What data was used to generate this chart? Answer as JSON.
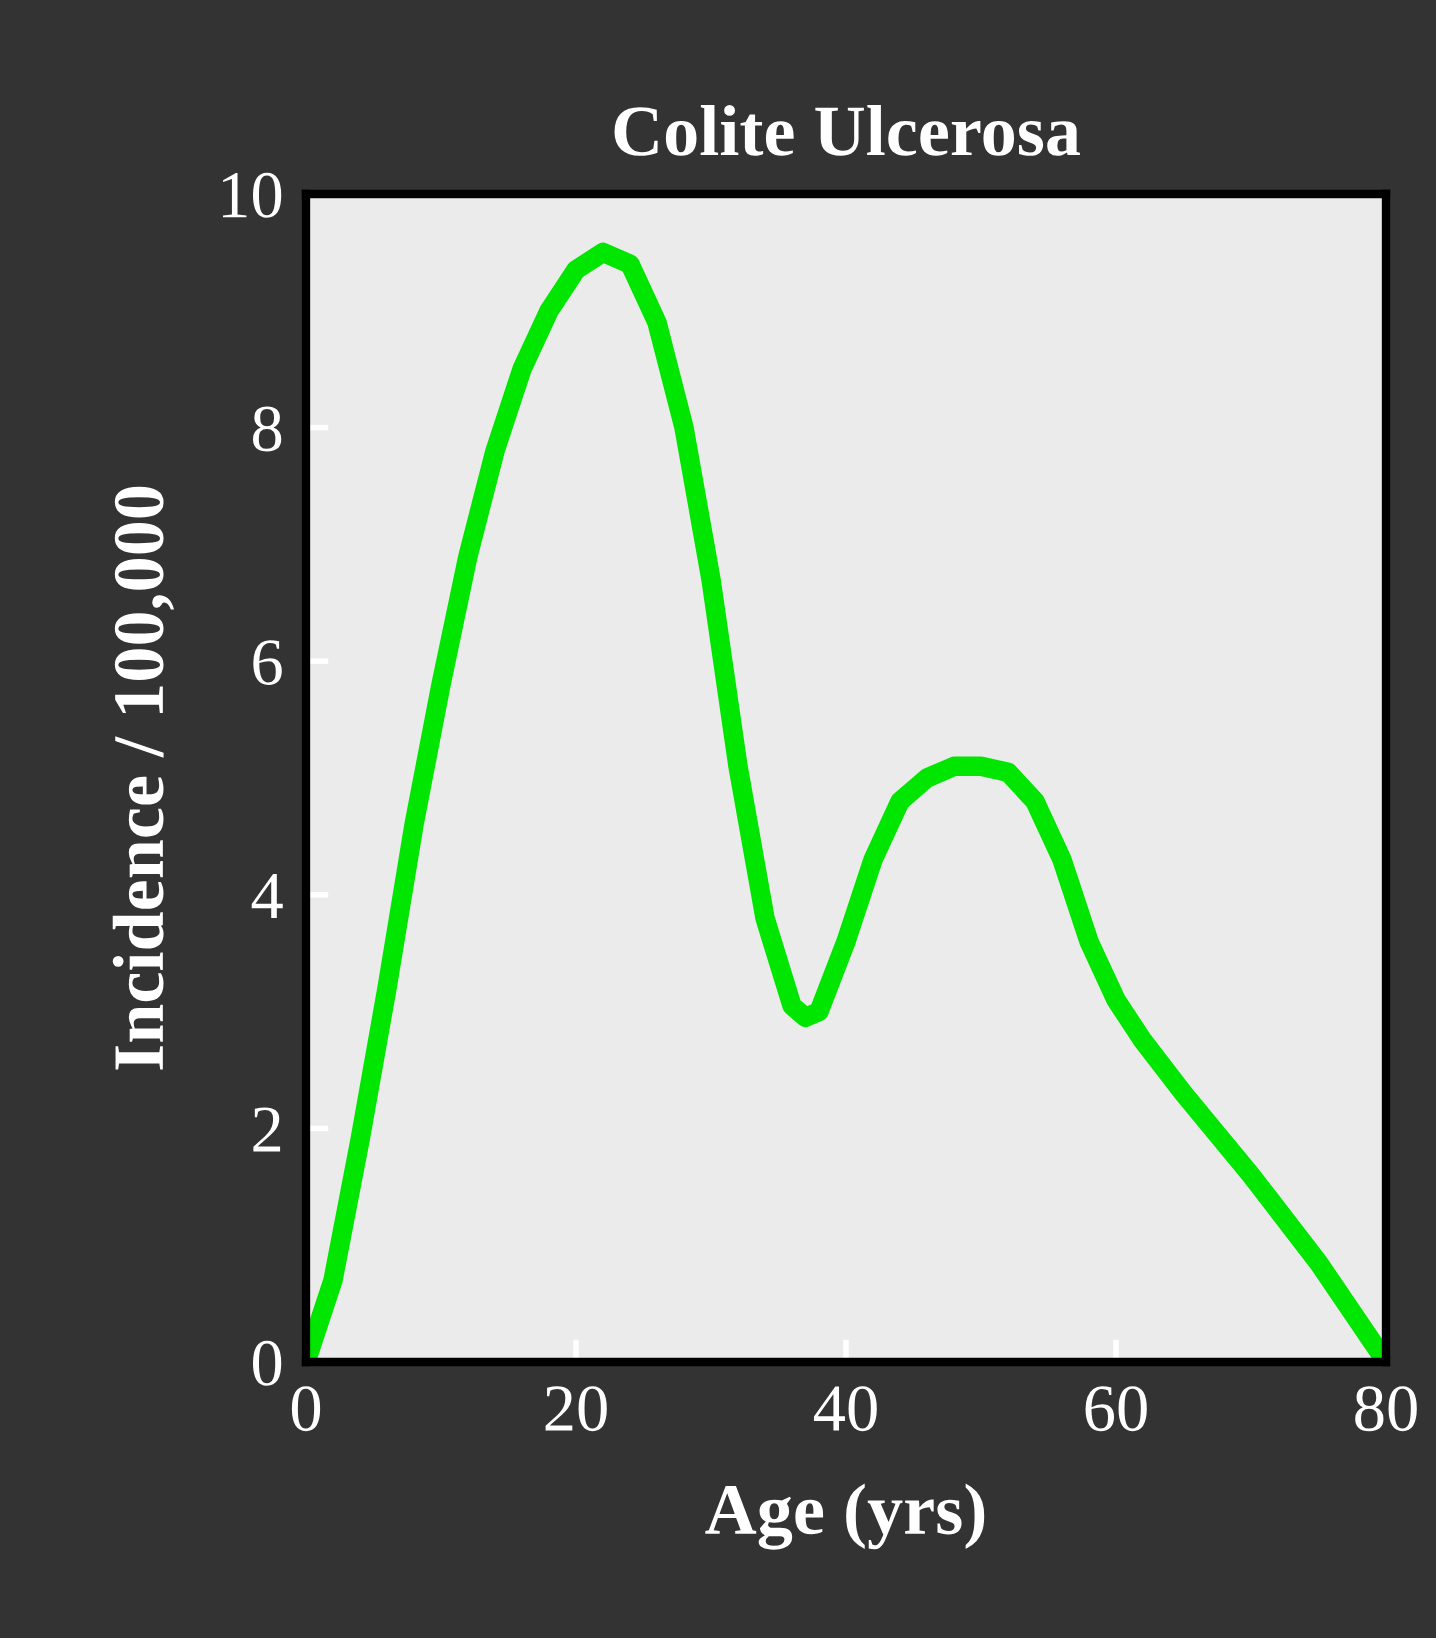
{
  "chart_data": {
    "type": "line",
    "title": "Colite Ulcerosa",
    "xlabel": "Age (yrs)",
    "ylabel": "Incidence / 100,000",
    "x": [
      0,
      2,
      4,
      6,
      8,
      10,
      12,
      14,
      16,
      18,
      20,
      22,
      24,
      26,
      28,
      30,
      32,
      34,
      36,
      37,
      38,
      40,
      42,
      44,
      46,
      48,
      50,
      52,
      54,
      56,
      58,
      60,
      62,
      65,
      70,
      75,
      80
    ],
    "series": [
      {
        "color": "#00e600",
        "values": [
          0,
          0.7,
          1.9,
          3.2,
          4.6,
          5.8,
          6.9,
          7.8,
          8.5,
          9.0,
          9.35,
          9.5,
          9.4,
          8.9,
          8.0,
          6.7,
          5.1,
          3.8,
          3.05,
          2.95,
          3.0,
          3.6,
          4.3,
          4.8,
          5.0,
          5.1,
          5.1,
          5.05,
          4.8,
          4.3,
          3.6,
          3.1,
          2.75,
          2.3,
          1.6,
          0.85,
          0
        ]
      }
    ],
    "xlim": [
      0,
      80
    ],
    "ylim": [
      0,
      10
    ],
    "xticks": [
      0,
      20,
      40,
      60,
      80
    ],
    "yticks": [
      0,
      2,
      4,
      6,
      8,
      10
    ],
    "grid": false,
    "legend": false,
    "marker": "none",
    "line_style": "solid"
  }
}
